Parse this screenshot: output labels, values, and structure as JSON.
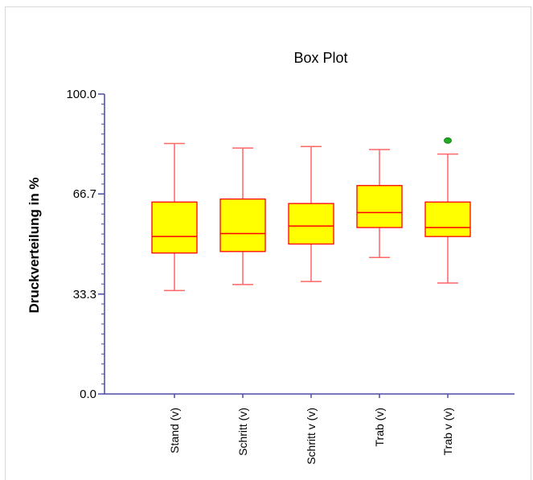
{
  "chart_data": {
    "type": "box",
    "title": "Box Plot",
    "ylabel": "Druckverteilung in %",
    "xlabel": "",
    "ylim": [
      0,
      100
    ],
    "yticks": [
      0.0,
      33.3,
      66.7,
      100.0
    ],
    "ytick_labels": [
      "0.0",
      "33.3",
      "66.7",
      "100.0"
    ],
    "categories": [
      "Stand (v)",
      "Schritt (v)",
      "Schritt v (v)",
      "Trab (v)",
      "Trab v (v)"
    ],
    "boxes": [
      {
        "min": 34.5,
        "q1": 47.0,
        "median": 52.5,
        "q3": 64.0,
        "max": 83.5
      },
      {
        "min": 36.5,
        "q1": 47.5,
        "median": 53.5,
        "q3": 65.0,
        "max": 82.0
      },
      {
        "min": 37.5,
        "q1": 50.0,
        "median": 56.0,
        "q3": 63.5,
        "max": 82.5
      },
      {
        "min": 45.5,
        "q1": 55.5,
        "median": 60.5,
        "q3": 69.5,
        "max": 81.5
      },
      {
        "min": 37.0,
        "q1": 52.5,
        "median": 55.5,
        "q3": 64.0,
        "max": 80.0
      }
    ],
    "outliers": [
      {
        "category": "Trab v (v)",
        "value": 84.5
      }
    ],
    "colors": {
      "box_fill": "#ffff00",
      "box_edge": "#ff0000",
      "whisker": "#ff6666",
      "axis": "#4a4aa8",
      "outlier": "#22aa22"
    }
  }
}
